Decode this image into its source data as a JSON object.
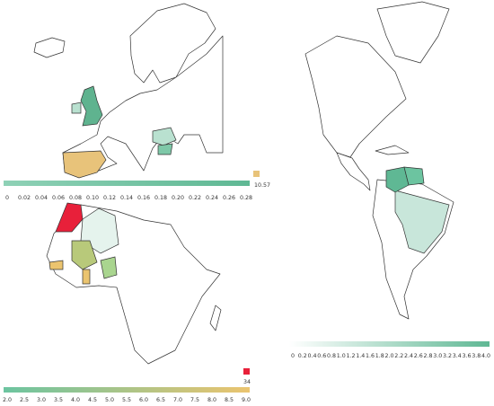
{
  "europe": {
    "legend": {
      "ticks": [
        "0",
        "0.02",
        "0.04",
        "0.06",
        "0.08",
        "0.10",
        "0.12",
        "0.14",
        "0.16",
        "0.18",
        "0.20",
        "0.22",
        "0.24",
        "0.26",
        "0.28"
      ],
      "outlier": "10.57"
    }
  },
  "americas": {
    "legend": {
      "ticks": [
        "0",
        "0.2",
        "0.4",
        "0.6",
        "0.8",
        "1.0",
        "1.2",
        "1.4",
        "1.6",
        "1.8",
        "2.0",
        "2.2",
        "2.4",
        "2.6",
        "2.8",
        "3.0",
        "3.2",
        "3.4",
        "3.6",
        "3.8",
        "4.0"
      ]
    }
  },
  "africa": {
    "legend": {
      "ticks": [
        "2.0",
        "2.5",
        "3.0",
        "3.5",
        "4.0",
        "4.5",
        "5.0",
        "5.5",
        "6.0",
        "6.5",
        "7.0",
        "7.5",
        "8.0",
        "8.5",
        "9.0"
      ],
      "outlier": "34"
    }
  }
}
